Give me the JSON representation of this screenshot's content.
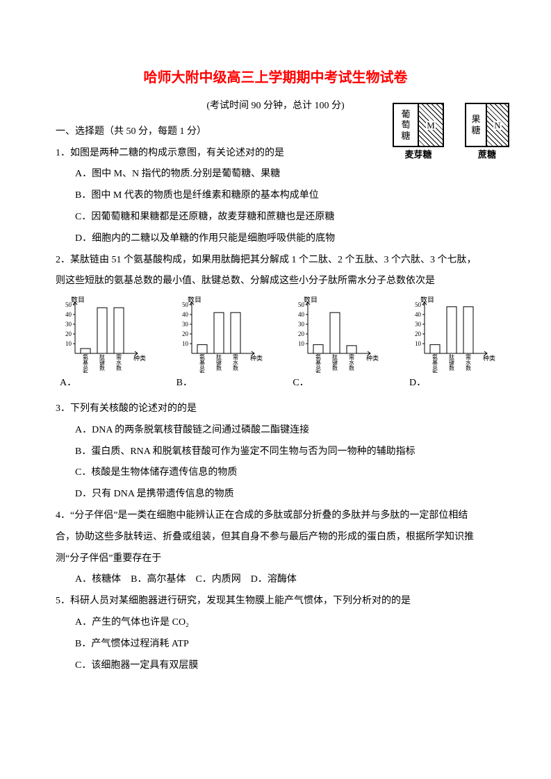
{
  "title": "哈师大附中级高三上学期期中考试生物试卷",
  "subtitle": "(考试时间 90 分钟，总计 100 分)",
  "section1": "一、选择题（共 50 分，每题 1 分）",
  "q1": {
    "stem": "1．如图是两种二糖的构成示意图，有关论述对的的是",
    "A": "A．图中 M、N 指代的物质.分别是葡萄糖、果糖",
    "B": "B．图中 M 代表的物质也是纤维素和糖原的基本构成单位",
    "C": "C．因葡萄糖和果糖都是还原糖，故麦芽糖和蔗糖也是还原糖",
    "D": "D．细胞内的二糖以及单糖的作用只能是细胞呼吸供能的底物"
  },
  "sugar": {
    "left1_a": "葡",
    "left1_b": "萄",
    "left1_c": "糖",
    "right1": "M",
    "cap1": "麦芽糖",
    "left2_a": "果",
    "left2_b": "糖",
    "right2": "N",
    "cap2": "蔗糖"
  },
  "q2": {
    "l1": "2．某肽链由 51 个氨基酸构成，如果用肽酶把其分解成 1 个二肽、2 个五肽、3 个六肽、3 个七肽，",
    "l2": "则这些短肽的氨基总数的最小值、肽键总数、分解成这些小分子肽所需水分子总数依次是",
    "optA": "A．",
    "optB": "B．",
    "optC": "C．",
    "optD": "D．"
  },
  "charts": {
    "ytitle": "数目",
    "ymax": 50,
    "xlabels": [
      "氨基总数",
      "肽键数",
      "需水数"
    ],
    "xsuffix": "种类",
    "axis_color": "#000000",
    "bar_color": "#ffffff",
    "stroke": "#000000",
    "A": {
      "bars": [
        5,
        47,
        47
      ]
    },
    "B": {
      "bars": [
        9,
        42,
        42
      ]
    },
    "C": {
      "bars": [
        9,
        42,
        8
      ]
    },
    "D": {
      "bars": [
        9,
        48,
        48
      ]
    }
  },
  "q3": {
    "stem": "3．下列有关核酸的论述对的的是",
    "A": "A．DNA 的两条脱氧核苷酸链之间通过磷酸二酯键连接",
    "B": "B．蛋白质、RNA 和脱氧核苷酸可作为鉴定不同生物与否为同一物种的辅助指标",
    "C": "C．核酸是生物体储存遗传信息的物质",
    "D": "D．只有 DNA 是携带遗传信息的物质"
  },
  "q4": {
    "l1": "4．“分子伴侣”是一类在细胞中能辨认正在合成的多肽或部分折叠的多肽并与多肽的一定部位相结",
    "l2": "合，协助这些多肽转运、折叠或组装，但其自身不参与最后产物的形成的蛋白质，根据所学知识推",
    "l3": "测“分子伴侣”重要存在于",
    "opts": "A．核糖体 B．高尔基体 C．内质网 D．溶酶体"
  },
  "q5": {
    "stem": "5．科研人员对某细胞器进行研究，发现其生物膜上能产气惯体，下列分析对的的是",
    "A": "A．产生的气体也许是 CO₂",
    "B": "B．产气惯体过程消耗 ATP",
    "C": "C．该细胞器一定具有双层膜"
  }
}
